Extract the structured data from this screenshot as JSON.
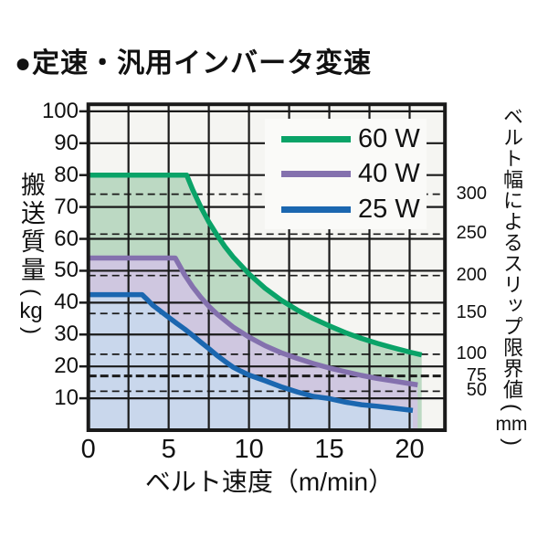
{
  "page": {
    "title": "●定速・汎用インバータ変速",
    "background": "#ffffff"
  },
  "chart_data": {
    "type": "line",
    "title": "●定速・汎用インバータ変速",
    "xlabel": "ベルト速度（m/min）",
    "x_axis_unit": "m/min",
    "y_axis": {
      "kanji": "搬送質量",
      "unit": "kg"
    },
    "y2_axis": {
      "kanji": "ベルト幅によるスリップ限界値",
      "unit": "mm"
    },
    "paren_open": "(",
    "paren_close": ")",
    "xlim": [
      0,
      22.2
    ],
    "ylim": [
      0,
      102.2
    ],
    "x_ticks": [
      0,
      5,
      10,
      15,
      20
    ],
    "x_grid_step": 2.5,
    "y_ticks": [
      10,
      20,
      30,
      40,
      50,
      60,
      70,
      80,
      90,
      100
    ],
    "grid": true,
    "legend_position": "upper right",
    "colors": {
      "grid": "#1a1a1a",
      "plot_bg": "#f5f5f2",
      "legend_bg": "#fafaf8",
      "text": "#111111"
    },
    "slip_limits": [
      {
        "label": "300",
        "y": 74.0,
        "bold": false
      },
      {
        "label": "250",
        "y": 61.5,
        "bold": false
      },
      {
        "label": "200",
        "y": 48.5,
        "bold": false
      },
      {
        "label": "150",
        "y": 36.6,
        "bold": false
      },
      {
        "label": "100",
        "y": 23.8,
        "bold": false
      },
      {
        "label": "75",
        "y": 17.0,
        "bold": true
      },
      {
        "label": "50",
        "y": 12.2,
        "bold": false
      }
    ],
    "series": [
      {
        "id": "60w",
        "name": "60 W",
        "color": "#0aa368",
        "fill": "#bcd9c3",
        "points": [
          [
            0,
            80
          ],
          [
            6.12,
            80
          ],
          [
            6.5,
            75.4
          ],
          [
            7,
            70
          ],
          [
            7.5,
            65.3
          ],
          [
            8,
            61.3
          ],
          [
            8.5,
            57.6
          ],
          [
            9,
            54.4
          ],
          [
            10,
            49
          ],
          [
            11,
            44.5
          ],
          [
            12,
            40.8
          ],
          [
            13,
            37.7
          ],
          [
            14,
            35
          ],
          [
            15,
            32.7
          ],
          [
            16,
            30.6
          ],
          [
            17,
            28.8
          ],
          [
            18,
            27.2
          ],
          [
            19,
            25.8
          ],
          [
            20,
            24.5
          ],
          [
            20.75,
            23.6
          ]
        ]
      },
      {
        "id": "40w",
        "name": "40 W",
        "color": "#8471ae",
        "fill": "#cfc7e0",
        "points": [
          [
            0,
            54
          ],
          [
            5.41,
            54
          ],
          [
            6,
            48.7
          ],
          [
            6.5,
            44.9
          ],
          [
            7,
            41.7
          ],
          [
            7.5,
            38.9
          ],
          [
            8,
            36.5
          ],
          [
            9,
            32.4
          ],
          [
            10,
            29.2
          ],
          [
            11,
            26.5
          ],
          [
            12,
            24.3
          ],
          [
            13,
            22.5
          ],
          [
            14,
            20.9
          ],
          [
            15,
            19.5
          ],
          [
            16,
            18.3
          ],
          [
            17,
            17.2
          ],
          [
            18,
            16.2
          ],
          [
            19,
            15.4
          ],
          [
            20,
            14.6
          ],
          [
            20.5,
            14.2
          ]
        ]
      },
      {
        "id": "25w",
        "name": "25 W",
        "color": "#1b67b0",
        "fill": "#c9d7ec",
        "points": [
          [
            0,
            42.5
          ],
          [
            3.35,
            42.5
          ],
          [
            3.7,
            40.8
          ],
          [
            4,
            39.2
          ],
          [
            4.5,
            37.3
          ],
          [
            5,
            35.4
          ],
          [
            5.5,
            33.5
          ],
          [
            6,
            31.7
          ],
          [
            6.5,
            29.7
          ],
          [
            7,
            27.6
          ],
          [
            7.5,
            25.6
          ],
          [
            8,
            23.5
          ],
          [
            8.5,
            21.6
          ],
          [
            9,
            19.8
          ],
          [
            9.5,
            18.5
          ],
          [
            10,
            17.3
          ],
          [
            11,
            15.5
          ],
          [
            12,
            13.6
          ],
          [
            13,
            12.0
          ],
          [
            14,
            10.6
          ],
          [
            15,
            9.9
          ],
          [
            16,
            8.8
          ],
          [
            17,
            8.0
          ],
          [
            18,
            7.5
          ],
          [
            19,
            6.9
          ],
          [
            20.2,
            6.2
          ]
        ]
      }
    ]
  }
}
